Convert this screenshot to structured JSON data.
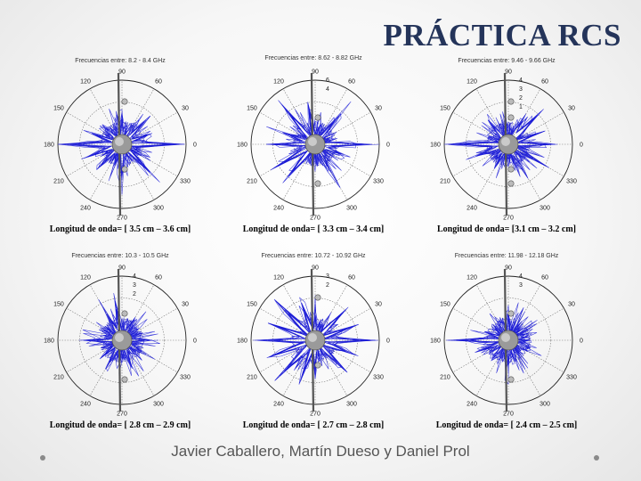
{
  "title": "PRÁCTICA RCS",
  "footer": "Javier Caballero, Martín Dueso y Daniel Prol",
  "angle_labels": [
    "90",
    "60",
    "30",
    "0",
    "330",
    "300",
    "270",
    "240",
    "210",
    "180",
    "150",
    "120"
  ],
  "plots": [
    {
      "frequency_label": "Frecuencias entre: 8.2 - 8.4 GHz",
      "caption": "Longitud de onda= [ 3.5 cm – 3.6 cm]",
      "radial_labels": []
    },
    {
      "frequency_label": "Frecuencias entre: 8.62 - 8.82 GHz",
      "caption": "Longitud de onda= [ 3.3 cm – 3.4 cm]",
      "radial_labels": [
        "6",
        "4"
      ]
    },
    {
      "frequency_label": "Frecuencias entre: 9.46 - 9.66 GHz",
      "caption": "Longitud de onda= [3.1 cm – 3.2 cm]",
      "radial_labels": [
        "4",
        "3",
        "2",
        "1"
      ]
    },
    {
      "frequency_label": "Frecuencias entre: 10.3 - 10.5 GHz",
      "caption": "Longitud de onda= [ 2.8 cm – 2.9 cm]",
      "radial_labels": [
        "4",
        "3",
        "2"
      ]
    },
    {
      "frequency_label": "Frecuencias entre: 10.72 - 10.92 GHz",
      "caption": "Longitud de onda= [ 2.7 cm – 2.8 cm]",
      "radial_labels": [
        "3",
        "2"
      ]
    },
    {
      "frequency_label": "Frecuencias entre: 11.98 - 12.18 GHz",
      "caption": "Longitud de onda= [ 2.4 cm – 2.5 cm]",
      "radial_labels": [
        "4",
        "3"
      ]
    }
  ]
}
